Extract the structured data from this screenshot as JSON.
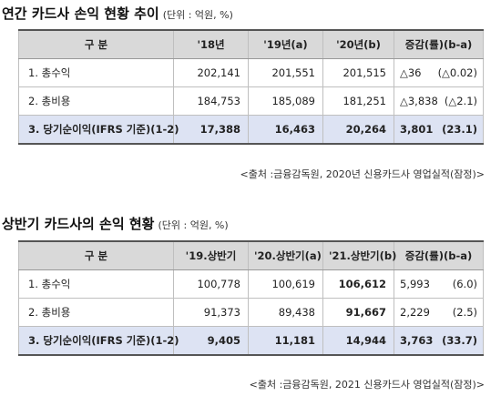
{
  "table1": {
    "title": "연간 카드사 손익 현황 추이",
    "unit": "(단위 : 억원, %)",
    "headers": [
      "구 분",
      "'18년",
      "'19년(a)",
      "'20년(b)",
      "증감(률)(b-a)"
    ],
    "rows": [
      {
        "label": "1. 총수익",
        "c1": "202,141",
        "c2": "201,551",
        "c3": "201,515",
        "chg": "△36",
        "rate": "(△0.02)"
      },
      {
        "label": "2. 총비용",
        "c1": "184,753",
        "c2": "185,089",
        "c3": "181,251",
        "chg": "△3,838",
        "rate": "(△2.1)"
      },
      {
        "label": "3. 당기순이익(IFRS 기준)(1-2)",
        "c1": "17,388",
        "c2": "16,463",
        "c3": "20,264",
        "chg": "3,801",
        "rate": "(23.1)"
      }
    ],
    "source": "<출처 :금융감독원, 2020년 신용카드사 영업실적(잠정)>"
  },
  "table2": {
    "title": "상반기 카드사의 손익 현황",
    "unit": "(단위 : 억원, %)",
    "headers": [
      "구 분",
      "'19.상반기",
      "'20.상반기(a)",
      "'21.상반기(b)",
      "증감(률)(b-a)"
    ],
    "rows": [
      {
        "label": "1. 총수익",
        "c1": "100,778",
        "c2": "100,619",
        "c3": "106,612",
        "chg": "5,993",
        "rate": "(6.0)"
      },
      {
        "label": "2. 총비용",
        "c1": "91,373",
        "c2": "89,438",
        "c3": "91,667",
        "chg": "2,229",
        "rate": "(2.5)"
      },
      {
        "label": "3. 당기순이익(IFRS 기준)(1-2)",
        "c1": "9,405",
        "c2": "11,181",
        "c3": "14,944",
        "chg": "3,763",
        "rate": "(33.7)"
      }
    ],
    "source": "<출처 :금융감독원, 2021 신용카드사 영업실적(잠정)>"
  }
}
